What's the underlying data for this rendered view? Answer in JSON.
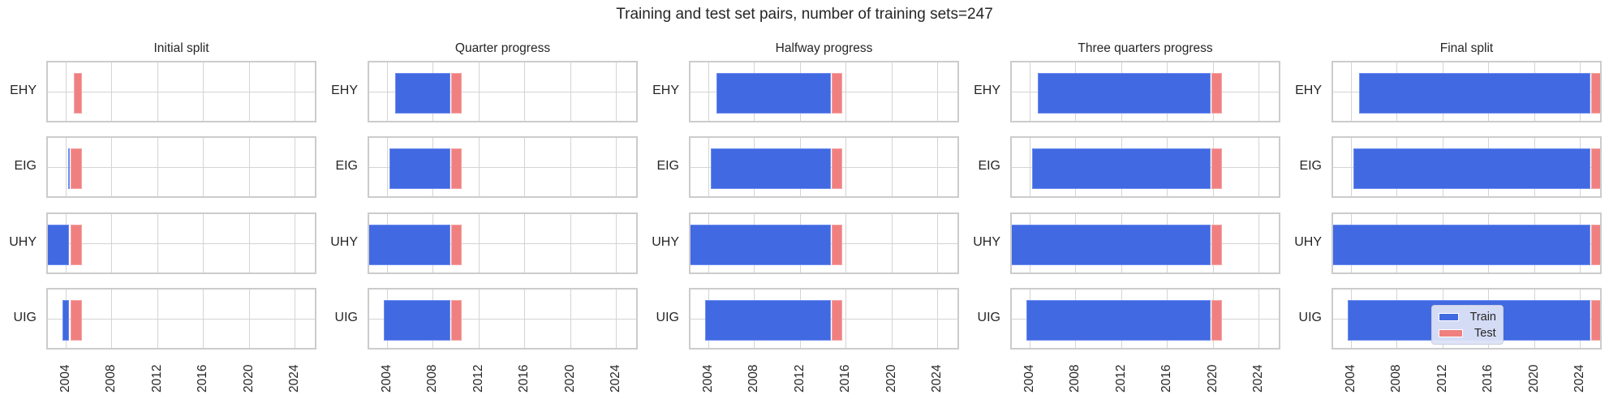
{
  "figure": {
    "suptitle": "Training and test set pairs, number of training sets=247"
  },
  "colors": {
    "train": "#4169e1",
    "test": "#f08080",
    "grid": "#d4d4d4",
    "spine": "#cccccc"
  },
  "legend": {
    "items": [
      {
        "label": "Train",
        "color": "#4169e1"
      },
      {
        "label": "Test",
        "color": "#f08080"
      }
    ]
  },
  "chart_data": {
    "type": "bar",
    "orientation": "horizontal",
    "title": "Training and test set pairs, number of training sets=247",
    "xlim": [
      2002.3,
      2025.9
    ],
    "xticks": [
      "2004",
      "2008",
      "2012",
      "2016",
      "2020",
      "2024"
    ],
    "categories": [
      "EHY",
      "EIG",
      "UHY",
      "UIG"
    ],
    "legend": [
      "Train",
      "Test"
    ],
    "legend_position": "lower center of last panel",
    "grid": true,
    "panels": [
      {
        "title": "Initial split",
        "series": [
          {
            "name": "Train",
            "intervals": [
              [
                2004.7,
                2004.7
              ],
              [
                2004.2,
                2004.3
              ],
              [
                2002.4,
                2004.3
              ],
              [
                2003.7,
                2004.3
              ]
            ]
          },
          {
            "name": "Test",
            "intervals": [
              [
                2004.7,
                2005.4
              ],
              [
                2004.4,
                2005.4
              ],
              [
                2004.4,
                2005.4
              ],
              [
                2004.4,
                2005.4
              ]
            ]
          }
        ]
      },
      {
        "title": "Quarter progress",
        "series": [
          {
            "name": "Train",
            "intervals": [
              [
                2004.7,
                2009.5
              ],
              [
                2004.2,
                2009.5
              ],
              [
                2002.4,
                2009.5
              ],
              [
                2003.7,
                2009.5
              ]
            ]
          },
          {
            "name": "Test",
            "intervals": [
              [
                2009.6,
                2010.5
              ],
              [
                2009.6,
                2010.5
              ],
              [
                2009.6,
                2010.5
              ],
              [
                2009.6,
                2010.5
              ]
            ]
          }
        ]
      },
      {
        "title": "Halfway progress",
        "series": [
          {
            "name": "Train",
            "intervals": [
              [
                2004.7,
                2014.7
              ],
              [
                2004.2,
                2014.7
              ],
              [
                2002.4,
                2014.7
              ],
              [
                2003.7,
                2014.7
              ]
            ]
          },
          {
            "name": "Test",
            "intervals": [
              [
                2014.8,
                2015.7
              ],
              [
                2014.8,
                2015.7
              ],
              [
                2014.8,
                2015.7
              ],
              [
                2014.8,
                2015.7
              ]
            ]
          }
        ]
      },
      {
        "title": "Three quarters progress",
        "series": [
          {
            "name": "Train",
            "intervals": [
              [
                2004.7,
                2019.8
              ],
              [
                2004.2,
                2019.8
              ],
              [
                2002.4,
                2019.8
              ],
              [
                2003.7,
                2019.8
              ]
            ]
          },
          {
            "name": "Test",
            "intervals": [
              [
                2019.9,
                2020.8
              ],
              [
                2019.9,
                2020.8
              ],
              [
                2019.9,
                2020.8
              ],
              [
                2019.9,
                2020.8
              ]
            ]
          }
        ]
      },
      {
        "title": "Final split",
        "series": [
          {
            "name": "Train",
            "intervals": [
              [
                2004.7,
                2024.9
              ],
              [
                2004.2,
                2024.9
              ],
              [
                2002.4,
                2024.9
              ],
              [
                2003.7,
                2024.9
              ]
            ]
          },
          {
            "name": "Test",
            "intervals": [
              [
                2025.0,
                2025.9
              ],
              [
                2025.0,
                2025.9
              ],
              [
                2025.0,
                2025.9
              ],
              [
                2025.0,
                2025.9
              ]
            ]
          }
        ]
      }
    ]
  }
}
